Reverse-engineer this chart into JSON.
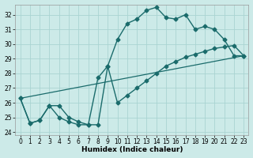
{
  "xlabel": "Humidex (Indice chaleur)",
  "background_color": "#cceae8",
  "line_color": "#1a6b6b",
  "grid_color": "#aad4d2",
  "xlim": [
    -0.5,
    23.5
  ],
  "ylim": [
    23.8,
    32.7
  ],
  "yticks": [
    24,
    25,
    26,
    27,
    28,
    29,
    30,
    31,
    32
  ],
  "xticks": [
    0,
    1,
    2,
    3,
    4,
    5,
    6,
    7,
    8,
    9,
    10,
    11,
    12,
    13,
    14,
    15,
    16,
    17,
    18,
    19,
    20,
    21,
    22,
    23
  ],
  "line1_x": [
    0,
    1,
    2,
    3,
    4,
    5,
    6,
    7,
    8,
    9,
    10,
    11,
    12,
    13,
    14,
    15,
    16,
    17,
    18,
    19,
    20,
    21,
    22,
    23
  ],
  "line1_y": [
    26.3,
    24.6,
    24.8,
    25.8,
    25.8,
    25.0,
    24.7,
    24.5,
    24.5,
    28.5,
    30.3,
    31.4,
    31.7,
    32.3,
    32.5,
    31.8,
    31.7,
    32.0,
    31.0,
    31.2,
    31.0,
    30.3,
    29.2,
    29.2
  ],
  "line2_x": [
    0,
    1,
    2,
    3,
    4,
    5,
    6,
    7,
    8,
    9,
    10,
    11,
    12,
    13,
    14,
    15,
    16,
    17,
    18,
    19,
    20,
    21,
    22,
    23
  ],
  "line2_y": [
    26.3,
    24.6,
    24.8,
    25.8,
    25.0,
    24.7,
    24.5,
    24.5,
    27.7,
    28.5,
    26.0,
    26.5,
    27.0,
    27.5,
    28.0,
    28.5,
    28.8,
    29.1,
    29.3,
    29.5,
    29.7,
    29.8,
    29.9,
    29.2
  ],
  "line3_x": [
    0,
    23
  ],
  "line3_y": [
    26.3,
    29.2
  ],
  "tick_fontsize": 5.5,
  "label_fontsize": 6.5
}
